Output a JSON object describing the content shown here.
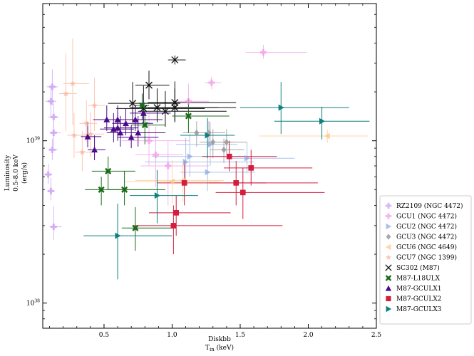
{
  "chart_data": {
    "type": "scatter",
    "xlabel_line1": "Diskbb",
    "xlabel_line2": "T",
    "xlabel_sub": "in",
    "xlabel_unit": " (keV)",
    "ylabel_line1": "Luminosity",
    "ylabel_line2": "0.5-8.0 keV",
    "ylabel_line3": "(erg/s)",
    "xlim": [
      0.05,
      2.5
    ],
    "ylim": [
      7e+37,
      7e+39
    ],
    "yscale": "log",
    "legend_position": "lower-right-outside",
    "x_ticks": [
      {
        "v": 0.5,
        "label": "0.5"
      },
      {
        "v": 1.0,
        "label": "1.0"
      },
      {
        "v": 1.5,
        "label": "1.5"
      },
      {
        "v": 2.0,
        "label": "2.0"
      },
      {
        "v": 2.5,
        "label": "2.5"
      }
    ],
    "y_ticks": [
      {
        "v": 1e+38,
        "base": "10",
        "exp": "38"
      },
      {
        "v": 1e+39,
        "base": "10",
        "exp": "39"
      }
    ],
    "series": [
      {
        "name": "RZ2109 (NGC 4472)",
        "color": "#c9a0f5",
        "marker": "P",
        "alpha": 0.75,
        "points": [
          [
            0.12,
            2.15e+39,
            0.04,
            0.04,
            5e+38,
            6e+38
          ],
          [
            0.11,
            1.75e+39,
            0.04,
            0.04,
            3.5e+38,
            4e+38
          ],
          [
            0.13,
            1.4e+39,
            0.04,
            0.04,
            2.5e+38,
            3e+38
          ],
          [
            0.13,
            1.12e+39,
            0.03,
            0.05,
            2e+38,
            2e+38
          ],
          [
            0.12,
            8.8e+38,
            0.03,
            0.04,
            1.2e+38,
            1.5e+38
          ],
          [
            0.09,
            6.2e+38,
            0.03,
            0.03,
            8e+37,
            1e+38
          ],
          [
            0.11,
            4.9e+38,
            0.03,
            0.03,
            6e+37,
            1e+38
          ],
          [
            0.13,
            2.95e+38,
            0.03,
            0.06,
            5e+37,
            1e+38
          ]
        ]
      },
      {
        "name": "GCU1 (NGC 4472)",
        "color": "#f39ce8",
        "marker": "P",
        "alpha": 0.75,
        "points": [
          [
            1.67,
            3.5e+39,
            0.13,
            0.32,
            3e+38,
            4e+38
          ],
          [
            1.29,
            2.28e+39,
            0.05,
            0.07,
            2e+38,
            2e+38
          ],
          [
            1.12,
            1.75e+39,
            0.1,
            0.15,
            3e+38,
            5e+38
          ],
          [
            0.88,
            8.2e+38,
            0.15,
            0.2,
            3e+38,
            4e+38
          ],
          [
            0.97,
            7e+38,
            0.2,
            0.3,
            3e+38,
            3e+38
          ],
          [
            0.83,
            1e+39,
            0.2,
            0.3,
            3e+38,
            5e+38
          ]
        ]
      },
      {
        "name": "GCU2 (NGC 4472)",
        "color": "#8aa8e0",
        "marker": ">",
        "alpha": 0.7,
        "points": [
          [
            1.28,
            9.5e+38,
            0.25,
            0.2,
            2.5e+38,
            3.5e+38
          ],
          [
            1.13,
            8e+38,
            0.28,
            0.4,
            2e+38,
            3e+38
          ],
          [
            1.1,
            7.4e+38,
            0.3,
            0.5,
            2e+38,
            3e+38
          ],
          [
            1.26,
            6.4e+38,
            0.2,
            0.35,
            1.5e+38,
            2e+38
          ],
          [
            1.55,
            7.8e+38,
            0.15,
            0.35,
            1.5e+38,
            2e+38
          ]
        ]
      },
      {
        "name": "GCU3 (NGC 4472)",
        "color": "#999999",
        "marker": "D",
        "alpha": 0.85,
        "points": [
          [
            1.18,
            1.12e+39,
            0.1,
            0.15,
            2e+38,
            2e+38
          ],
          [
            1.27,
            1.12e+39,
            0.08,
            0.12,
            2e+38,
            2e+38
          ],
          [
            1.3,
            9.8e+38,
            0.1,
            0.15,
            2e+38,
            2e+38
          ],
          [
            1.4,
            9.8e+38,
            0.08,
            0.15,
            1.5e+38,
            2e+38
          ],
          [
            1.38,
            8.8e+38,
            0.1,
            0.15,
            1.5e+38,
            1.5e+38
          ]
        ]
      },
      {
        "name": "GCU6 (NGC 4649)",
        "color": "#fbc98a",
        "marker": "<",
        "alpha": 0.75,
        "points": [
          [
            2.14,
            1.07e+39,
            0.5,
            0.3,
            1e+38,
            1e+38
          ],
          [
            1.0,
            5.6e+38,
            0.35,
            0.35,
            1.5e+38,
            2e+38
          ],
          [
            1.08,
            5.7e+38,
            0.35,
            0.3,
            1.5e+38,
            2e+38
          ]
        ]
      },
      {
        "name": "GCU7 (NGC 1399)",
        "color": "#fbb49a",
        "marker": "*",
        "alpha": 0.75,
        "points": [
          [
            0.27,
            2.25e+39,
            0.07,
            0.12,
            1e+39,
            2e+39
          ],
          [
            0.22,
            1.95e+39,
            0.05,
            0.08,
            8e+38,
            1.5e+39
          ],
          [
            0.43,
            1.65e+39,
            0.05,
            0.08,
            5e+38,
            8e+38
          ],
          [
            0.37,
            1.28e+39,
            0.05,
            0.08,
            3e+38,
            5e+38
          ],
          [
            0.4,
            1.1e+39,
            0.05,
            0.1,
            3e+38,
            4e+38
          ],
          [
            0.28,
            1.08e+39,
            0.05,
            0.1,
            3e+38,
            4e+38
          ],
          [
            0.34,
            8.5e+38,
            0.05,
            0.08,
            2e+38,
            3e+38
          ]
        ]
      },
      {
        "name": "SC302 (M87)",
        "color": "#111111",
        "marker": "x",
        "alpha": 1.0,
        "points": [
          [
            1.02,
            3.15e+39,
            0.05,
            0.08,
            2e+38,
            2e+38
          ],
          [
            0.83,
            2.2e+39,
            0.1,
            0.15,
            4e+38,
            5e+38
          ],
          [
            0.71,
            1.7e+39,
            0.18,
            0.35,
            4e+38,
            6e+38
          ],
          [
            0.79,
            1.58e+39,
            0.2,
            0.45,
            3e+38,
            6e+38
          ],
          [
            0.89,
            1.6e+39,
            0.2,
            0.45,
            3e+38,
            5e+38
          ],
          [
            0.95,
            1.52e+39,
            0.2,
            0.45,
            3e+38,
            5e+38
          ],
          [
            1.02,
            1.72e+39,
            0.2,
            0.45,
            4e+38,
            6e+38
          ],
          [
            1.02,
            1.6e+39,
            0.2,
            0.45,
            3e+38,
            5e+38
          ]
        ]
      },
      {
        "name": "M87-L18ULX",
        "color": "#1a6b1a",
        "marker": "X",
        "alpha": 1.0,
        "points": [
          [
            0.78,
            1.65e+39,
            0.05,
            0.05,
            3e+38,
            3e+38
          ],
          [
            0.8,
            1.25e+39,
            0.1,
            0.15,
            3e+38,
            4e+38
          ],
          [
            1.12,
            1.42e+39,
            0.12,
            0.3,
            3e+38,
            4e+38
          ],
          [
            0.53,
            6.5e+38,
            0.12,
            0.2,
            1.5e+38,
            1.5e+38
          ],
          [
            0.48,
            5e+38,
            0.12,
            0.2,
            1e+38,
            1e+38
          ],
          [
            0.65,
            5e+38,
            0.12,
            0.3,
            1e+38,
            1.5e+38
          ],
          [
            0.73,
            2.9e+38,
            0.1,
            0.3,
            8e+37,
            1e+38
          ]
        ]
      },
      {
        "name": "M87-GCULX1",
        "color": "#4b0a8c",
        "marker": "^",
        "alpha": 1.0,
        "points": [
          [
            0.38,
            1.06e+39,
            0.05,
            0.1,
            1.5e+38,
            2.5e+38
          ],
          [
            0.43,
            8.8e+38,
            0.05,
            0.08,
            1.2e+38,
            2e+38
          ],
          [
            0.52,
            1.35e+39,
            0.1,
            0.15,
            2e+38,
            3e+38
          ],
          [
            0.57,
            1.18e+39,
            0.1,
            0.15,
            2e+38,
            3e+38
          ],
          [
            0.6,
            1.35e+39,
            0.1,
            0.15,
            2e+38,
            3e+38
          ],
          [
            0.62,
            1.12e+39,
            0.1,
            0.15,
            2e+38,
            3e+38
          ],
          [
            0.66,
            1.28e+39,
            0.1,
            0.2,
            2e+38,
            3e+38
          ],
          [
            0.7,
            1.05e+39,
            0.1,
            0.2,
            1.5e+38,
            2e+38
          ],
          [
            0.73,
            1.35e+39,
            0.1,
            0.2,
            2e+38,
            3e+38
          ],
          [
            0.75,
            1.12e+39,
            0.1,
            0.2,
            2e+38,
            3e+38
          ],
          [
            0.79,
            1.48e+39,
            0.1,
            0.2,
            2e+38,
            3e+38
          ],
          [
            0.6,
            1.2e+39,
            0.1,
            0.15,
            2e+38,
            3e+38
          ]
        ]
      },
      {
        "name": "M87-GCULX2",
        "color": "#d41c3c",
        "marker": "s",
        "alpha": 1.0,
        "points": [
          [
            1.42,
            8e+38,
            0.2,
            0.35,
            1.5e+38,
            2e+38
          ],
          [
            1.58,
            6.8e+38,
            0.2,
            0.45,
            1.5e+38,
            2e+38
          ],
          [
            1.47,
            5.5e+38,
            0.2,
            0.6,
            1.5e+38,
            2e+38
          ],
          [
            1.52,
            4.8e+38,
            0.2,
            0.6,
            1.5e+38,
            2e+38
          ],
          [
            1.09,
            5.5e+38,
            0.2,
            0.6,
            1.5e+38,
            2e+38
          ],
          [
            1.03,
            3.6e+38,
            0.2,
            0.4,
            1e+38,
            1e+38
          ],
          [
            1.01,
            3e+38,
            0.3,
            0.8,
            1e+38,
            1e+38
          ]
        ]
      },
      {
        "name": "M87-GCULX3",
        "color": "#0f7f7f",
        "marker": ">",
        "alpha": 1.0,
        "points": [
          [
            1.8,
            1.6e+39,
            0.3,
            0.5,
            5e+38,
            7e+38
          ],
          [
            2.1,
            1.32e+39,
            0.35,
            0.35,
            3e+38,
            3e+38
          ],
          [
            1.26,
            1.08e+39,
            0.2,
            0.2,
            3e+38,
            3e+38
          ],
          [
            0.89,
            4.6e+38,
            0.2,
            0.3,
            1.5e+38,
            2e+38
          ],
          [
            0.6,
            2.6e+38,
            0.25,
            0.4,
            1.2e+38,
            1.5e+38
          ]
        ]
      }
    ]
  }
}
